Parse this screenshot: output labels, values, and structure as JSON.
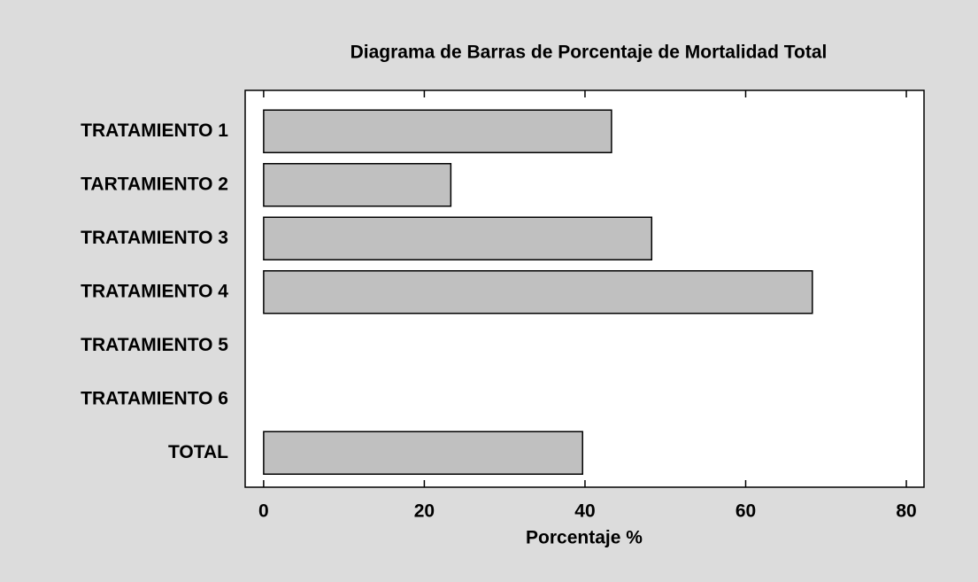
{
  "chart_data": {
    "type": "hbar",
    "title": "Diagrama de Barras de Porcentaje de Mortalidad Total",
    "categories": [
      "TRATAMIENTO 1",
      "TARTAMIENTO 2",
      "TRATAMIENTO 3",
      "TRATAMIENTO 4",
      "TRATAMIENTO 5",
      "TRATAMIENTO 6",
      "TOTAL"
    ],
    "values": [
      43.3,
      23.3,
      48.3,
      68.3,
      0,
      0,
      39.7
    ],
    "color": "#c0c0c0",
    "x_label": "Porcentaje %",
    "xlim": [
      -2.3,
      82.2
    ],
    "xticks": [
      0,
      20,
      40,
      60,
      80
    ],
    "grid": false
  }
}
